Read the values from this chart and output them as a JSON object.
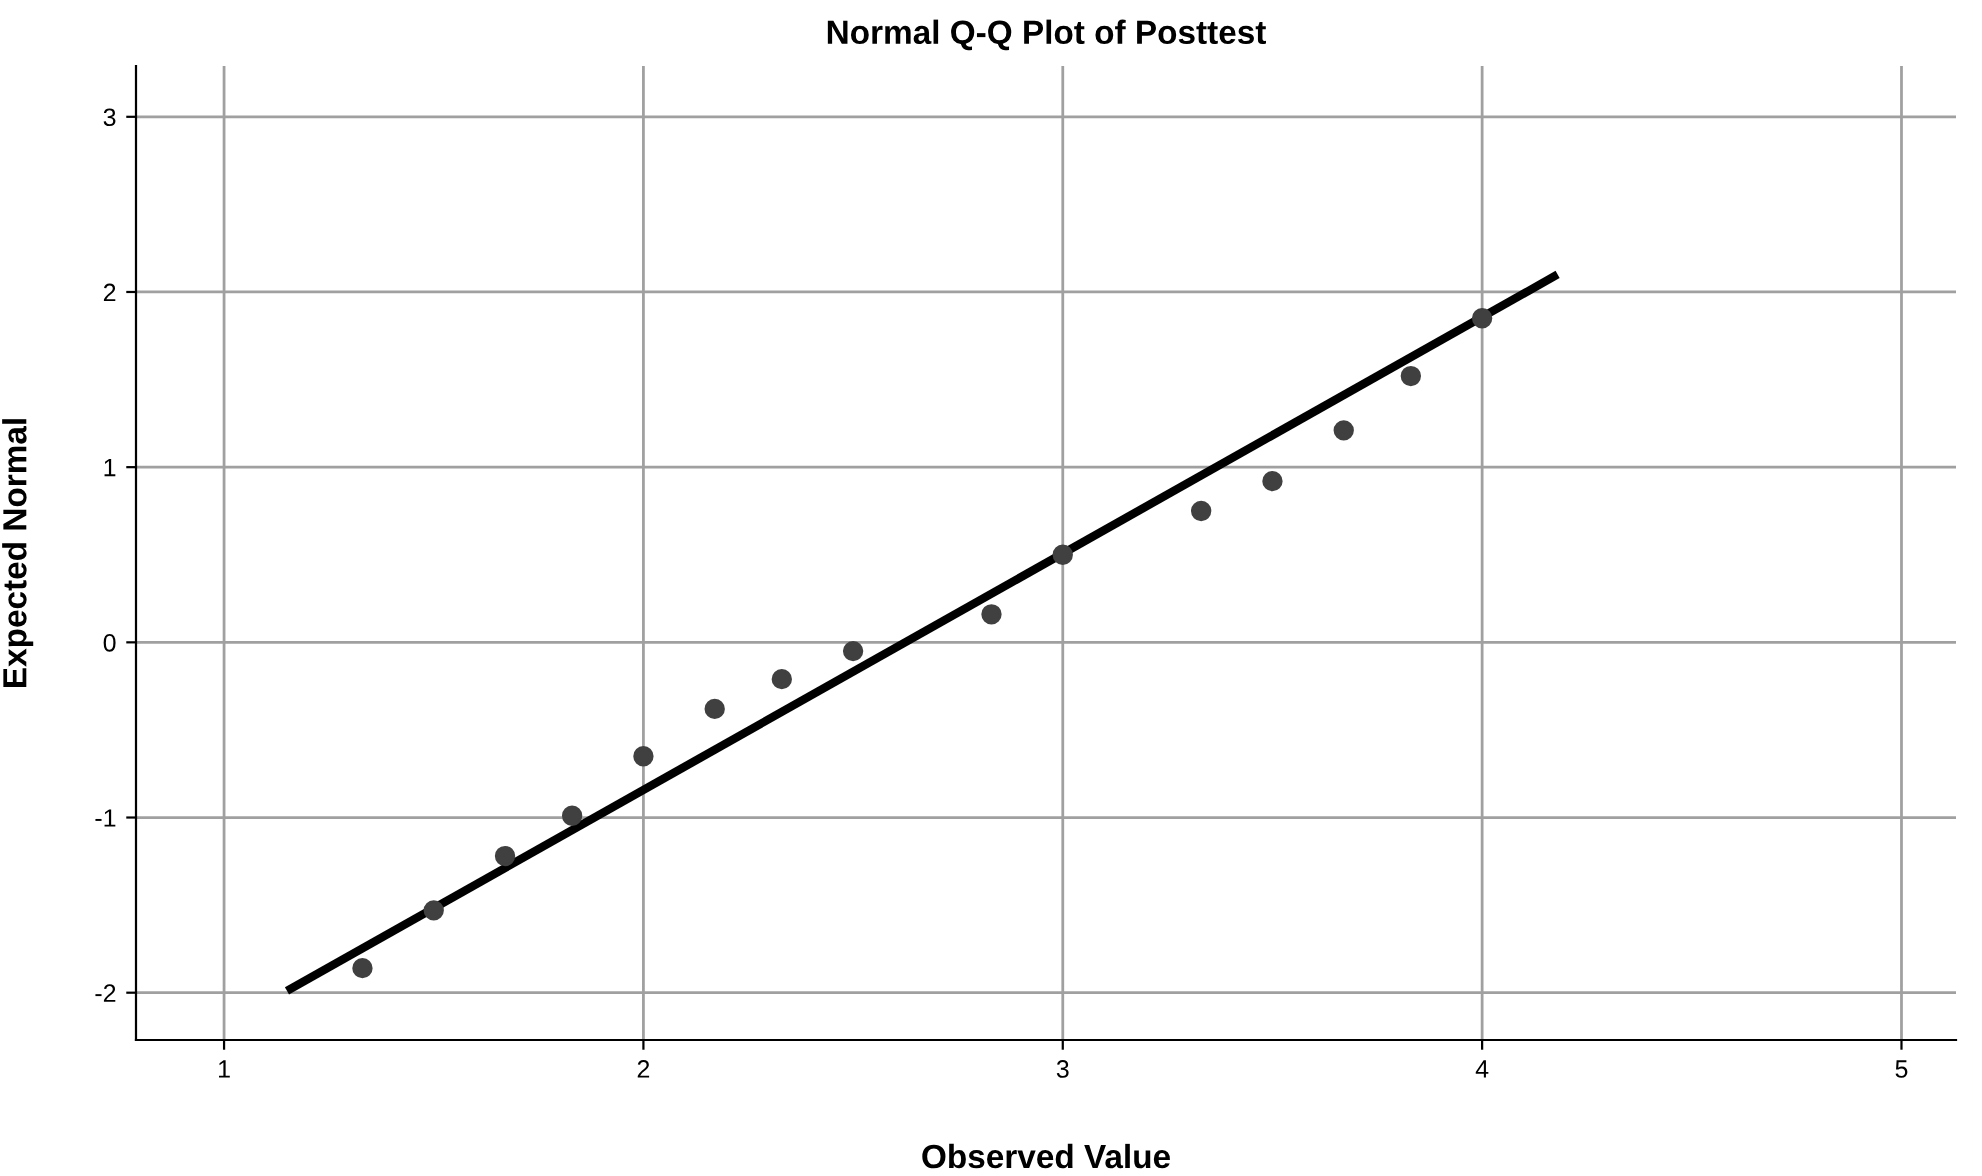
{
  "chart_data": {
    "type": "scatter",
    "title": "Normal Q-Q Plot of Posttest",
    "xlabel": "Observed Value",
    "ylabel": "Expected Normal",
    "series": [
      {
        "color": "#404040",
        "marker": "circle",
        "x": [
          1.33,
          1.5,
          1.67,
          1.83,
          2.0,
          2.17,
          2.33,
          2.5,
          2.83,
          3.0,
          3.33,
          3.5,
          3.67,
          3.83,
          4.0
        ],
        "values": [
          -1.86,
          -1.53,
          -1.22,
          -0.99,
          -0.65,
          -0.38,
          -0.21,
          -0.05,
          0.16,
          0.5,
          0.75,
          0.92,
          1.21,
          1.52,
          1.85
        ]
      },
      {
        "type": "line",
        "marker": "none",
        "color": "#000000",
        "x": [
          1.15,
          4.18
        ],
        "values": [
          -1.99,
          2.1
        ]
      }
    ],
    "xlim": [
      0.79,
      5.13
    ],
    "ylim": [
      -2.27,
      3.29
    ],
    "xticks": [
      1,
      2,
      3,
      4,
      5
    ],
    "yticks": [
      -2,
      -1,
      0,
      1,
      2,
      3
    ],
    "grid": true,
    "line_style": "solid"
  }
}
